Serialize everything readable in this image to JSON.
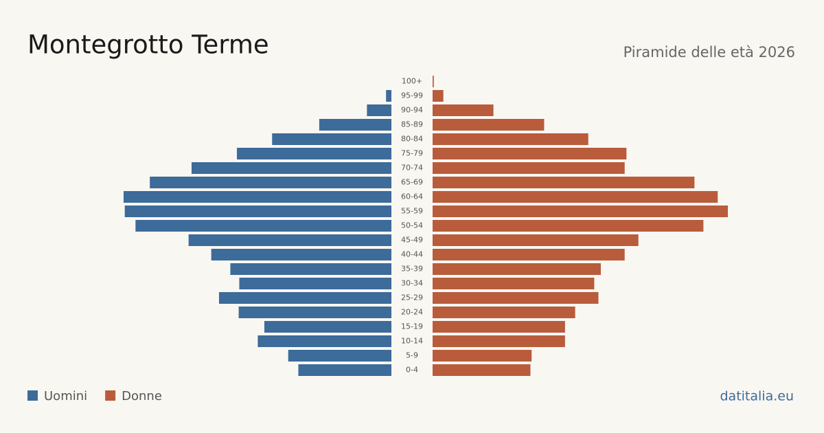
{
  "chart_data": {
    "type": "pyramid",
    "title": "Montegrotto  Terme",
    "subtitle": "Piramide delle età 2026",
    "categories": [
      "100+",
      "95-99",
      "90-94",
      "85-89",
      "80-84",
      "75-79",
      "70-74",
      "65-69",
      "60-64",
      "55-59",
      "50-54",
      "45-49",
      "40-44",
      "35-39",
      "30-34",
      "25-29",
      "20-24",
      "15-19",
      "10-14",
      "5-9",
      "0-4"
    ],
    "series": [
      {
        "name": "Uomini",
        "color": "#3d6b9a",
        "values": [
          0,
          9,
          41,
          121,
          200,
          259,
          335,
          405,
          449,
          447,
          429,
          340,
          302,
          270,
          255,
          289,
          256,
          213,
          224,
          173,
          156
        ]
      },
      {
        "name": "Donne",
        "color": "#b95c3c",
        "values": [
          2,
          18,
          102,
          187,
          261,
          325,
          322,
          439,
          478,
          495,
          454,
          345,
          322,
          282,
          271,
          278,
          239,
          222,
          222,
          166,
          164
        ]
      }
    ],
    "source": "datitalia.eu"
  }
}
